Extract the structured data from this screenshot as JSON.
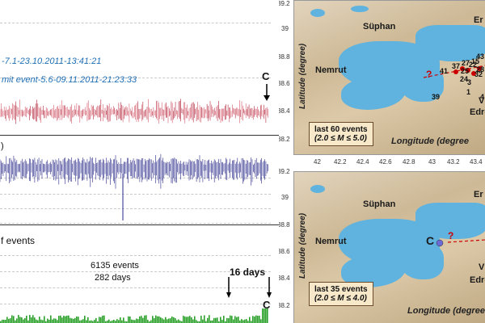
{
  "left": {
    "mainshock_text": "-7.1-23.10.2011-13:41:21",
    "edremit_text": "mit event-5.6-09.11.2011-21:23:33",
    "marker_c_top": "C",
    "panel2_label": ")",
    "panel3_label": "f events",
    "events_count": "6135 events",
    "days_count": "282 days",
    "interval_label": "16 days",
    "marker_c_bottom": "C"
  },
  "maps": {
    "top": {
      "lat_ticks": [
        "39.2",
        "39",
        "38.8",
        "38.6",
        "38.4",
        "38.2"
      ],
      "lon_ticks": [
        "42",
        "42.2",
        "42.4",
        "42.6",
        "42.8",
        "43",
        "43.2",
        "43.4"
      ],
      "lat_label": "Latitude (degree)",
      "lon_label": "Longitude (degree",
      "places": {
        "suphan": "Süphan",
        "nemrut": "Nemrut",
        "ercis": "Er",
        "van": "V",
        "edremit": "Edre"
      },
      "box_line1": "last 60 events",
      "box_line2": "(2.0 ≤ M ≤ 5.0)",
      "numbers": [
        "41",
        "37",
        "27",
        "22",
        "43",
        "25",
        "28",
        "15",
        "24",
        "3",
        "32",
        "1",
        "39",
        "4",
        "5",
        "?"
      ]
    },
    "bottom": {
      "lat_ticks": [
        "39.2",
        "39",
        "38.8",
        "38.6",
        "38.4",
        "38.2"
      ],
      "lat_label": "Latitude (degree)",
      "lon_label": "Longitude (degree",
      "places": {
        "suphan": "Süphan",
        "nemrut": "Nemrut",
        "ercis": "Er",
        "van": "V",
        "edremit": "Edre"
      },
      "marker_c": "C",
      "question": "?",
      "box_line1": "last 35 events",
      "box_line2": "(2.0 ≤ M ≤ 4.0)"
    }
  }
}
